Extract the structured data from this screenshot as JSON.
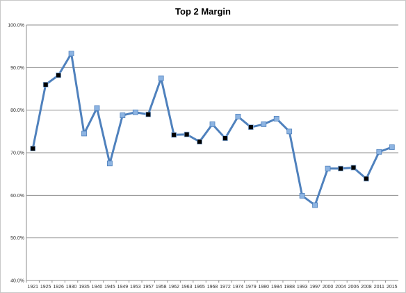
{
  "chart_data": {
    "type": "line",
    "title": "Top 2 Margin",
    "xlabel": "",
    "ylabel": "",
    "ylim": [
      40,
      100
    ],
    "yticks": [
      "40.0%",
      "50.0%",
      "60.0%",
      "70.0%",
      "80.0%",
      "90.0%",
      "100.0%"
    ],
    "grid": true,
    "legend": "none",
    "line_color": "#4f81bd",
    "marker_colors": {
      "light": "#8db4e2",
      "dark": "#000000"
    },
    "categories": [
      "1921",
      "1925",
      "1926",
      "1930",
      "1935",
      "1940",
      "1945",
      "1949",
      "1953",
      "1957",
      "1958",
      "1962",
      "1963",
      "1965",
      "1968",
      "1972",
      "1974",
      "1979",
      "1980",
      "1984",
      "1988",
      "1993",
      "1997",
      "2000",
      "2004",
      "2006",
      "2008",
      "2011",
      "2015"
    ],
    "values": [
      71.0,
      86.0,
      88.2,
      93.3,
      74.5,
      80.5,
      67.5,
      78.8,
      79.5,
      79.0,
      87.5,
      74.2,
      74.3,
      72.6,
      76.7,
      73.4,
      78.5,
      76.0,
      76.7,
      78.0,
      75.0,
      59.9,
      57.7,
      66.3,
      66.3,
      66.5,
      63.9,
      70.2,
      71.3
    ],
    "markers": [
      "dark",
      "dark",
      "dark",
      "light",
      "light",
      "light",
      "light",
      "light",
      "light",
      "dark",
      "light",
      "dark",
      "dark",
      "dark",
      "light",
      "dark",
      "light",
      "dark",
      "light",
      "light",
      "light",
      "light",
      "light",
      "light",
      "dark",
      "dark",
      "dark",
      "light",
      "light"
    ]
  }
}
